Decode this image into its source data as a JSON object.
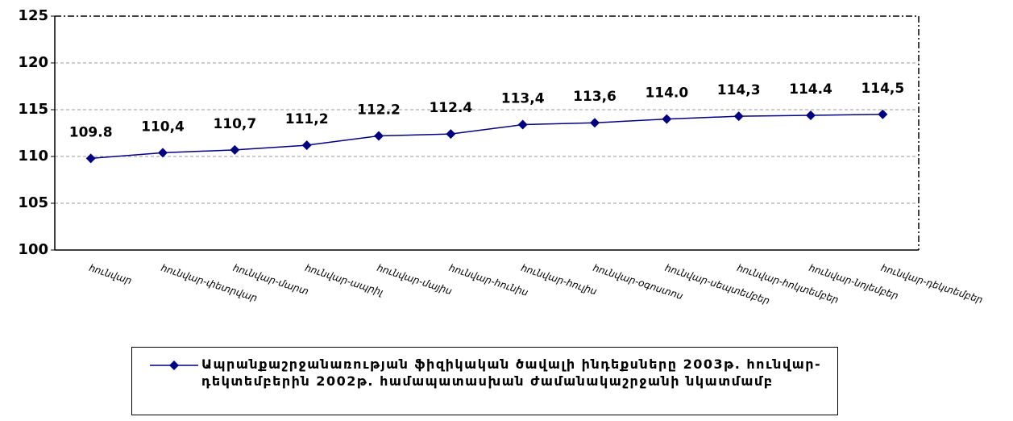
{
  "chart_data": {
    "type": "line",
    "categories": [
      "հունվար",
      "հունվար-փետրվար",
      "հունվար-մարտ",
      "հունվար-ապրիլ",
      "հունվար-մայիս",
      "հունվար-հունիս",
      "հունվար-հուլիս",
      "հունվար-օգոստոս",
      "հունվար-սեպտեմբեր",
      "հունվար-հոկտեմբեր",
      "հունվար-նոյեմբեր",
      "հունվար-դեկտեմբեր"
    ],
    "series": [
      {
        "name": "Ապրանքաշրջանառության ֆիզիկական ծավալի ինդեքսները 2003թ. հունվար-դեկտեմբերին 2002թ. համապատասխան ժամանակաշրջանի նկատմամբ",
        "color": "#000080",
        "values": [
          109.8,
          110.4,
          110.7,
          111.2,
          112.2,
          112.4,
          113.4,
          113.6,
          114.0,
          114.3,
          114.4,
          114.5
        ],
        "value_labels": [
          "109.8",
          "110,4",
          "110,7",
          "111,2",
          "112.2",
          "112.4",
          "113,4",
          "113,6",
          "114.0",
          "114,3",
          "114.4",
          "114,5"
        ]
      }
    ],
    "ylim": [
      100,
      125
    ],
    "yticks": [
      100,
      105,
      110,
      115,
      120,
      125
    ],
    "grid": true
  }
}
